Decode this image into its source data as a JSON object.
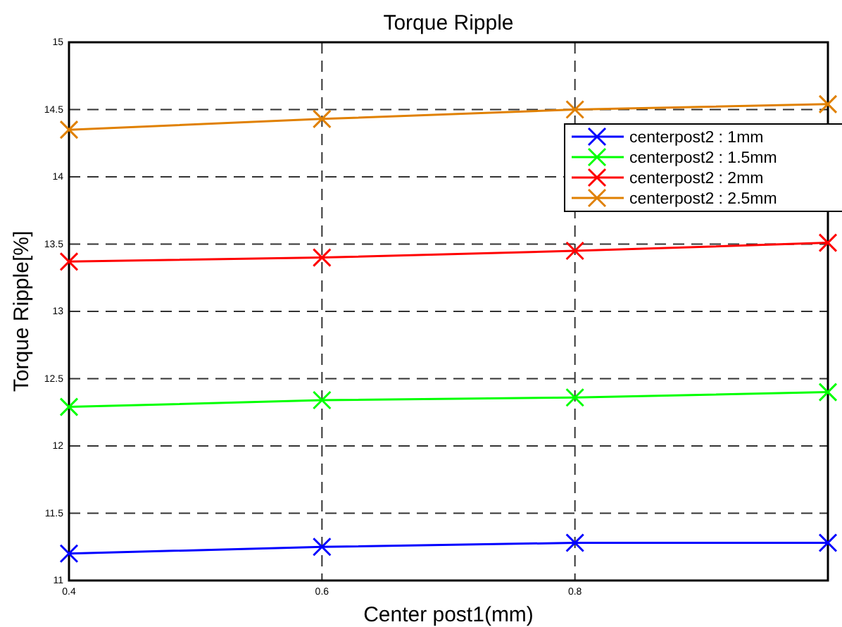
{
  "chart_data": {
    "type": "line",
    "title": "Torque Ripple",
    "xlabel": "Center post1(mm)",
    "ylabel": "Torque Ripple[%]",
    "x": [
      0.4,
      0.6,
      0.8,
      1.0
    ],
    "xlim": [
      0.4,
      1.0
    ],
    "xticks": [
      0.4,
      0.6,
      0.8
    ],
    "ylim": [
      11,
      15
    ],
    "yticks": [
      11,
      11.5,
      12,
      12.5,
      13,
      13.5,
      14,
      14.5,
      15
    ],
    "grid": true,
    "legend": "top right",
    "marker": "cross",
    "line_style": "solid",
    "series": [
      {
        "name": "centerpost2 : 1mm",
        "color": "#0000ff",
        "values": [
          11.2,
          11.25,
          11.28,
          11.28
        ]
      },
      {
        "name": "centerpost2 : 1.5mm",
        "color": "#00ff00",
        "values": [
          12.29,
          12.34,
          12.36,
          12.4
        ]
      },
      {
        "name": "centerpost2 : 2mm",
        "color": "#ff0000",
        "values": [
          13.37,
          13.4,
          13.45,
          13.51
        ]
      },
      {
        "name": "centerpost2 : 2.5mm",
        "color": "#e08000",
        "values": [
          14.35,
          14.43,
          14.5,
          14.54
        ]
      }
    ]
  }
}
